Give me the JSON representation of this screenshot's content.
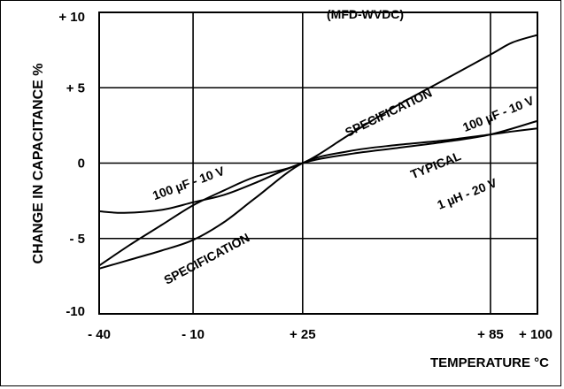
{
  "chart_data": {
    "type": "line",
    "title": "(MFD-WVDC)",
    "xlabel": "TEMPERATURE °C",
    "ylabel": "CHANGE IN CAPACITANCE %",
    "x_ticks": [
      -40,
      -10,
      25,
      85,
      100
    ],
    "x_tick_labels": [
      "- 40",
      "- 10",
      "+ 25",
      "+ 85",
      "+ 100"
    ],
    "y_ticks": [
      10,
      5,
      0,
      -5,
      -10
    ],
    "y_tick_labels": [
      "+ 10",
      "+ 5",
      "0",
      "- 5",
      "-10"
    ],
    "xlim": [
      -40,
      100
    ],
    "ylim": [
      -10,
      10
    ],
    "grid": true,
    "series": [
      {
        "name": "SPECIFICATION 100 µF - 10 V (upper)",
        "x": [
          -40,
          -30,
          -20,
          -10,
          0,
          10,
          25,
          40,
          55,
          70,
          85,
          92,
          100
        ],
        "y": [
          -6.8,
          -5.4,
          -4.1,
          -2.8,
          -1.8,
          -0.9,
          0,
          1.9,
          3.8,
          5.5,
          7.2,
          8.0,
          8.5
        ]
      },
      {
        "name": "SPECIFICATION (lower)",
        "x": [
          -40,
          -30,
          -20,
          -10,
          0,
          10,
          25,
          40,
          55,
          70,
          85,
          92,
          100
        ],
        "y": [
          -7.0,
          -6.4,
          -5.8,
          -5.1,
          -3.9,
          -2.3,
          0,
          0.8,
          1.2,
          1.5,
          1.9,
          2.1,
          2.3
        ]
      },
      {
        "name": "TYPICAL 1 µH - 20 V",
        "x": [
          -40,
          -32,
          -20,
          -10,
          0,
          10,
          25,
          40,
          55,
          70,
          85,
          100
        ],
        "y": [
          -3.2,
          -3.3,
          -3.1,
          -2.6,
          -2.1,
          -1.3,
          0,
          0.6,
          1.0,
          1.4,
          1.9,
          2.8
        ]
      }
    ],
    "annotations": [
      {
        "text": "(MFD-WVDC)",
        "x": 45,
        "y": 9.6,
        "rotate": 0
      },
      {
        "text": "SPECIFICATION",
        "x": 53,
        "y": 3.1,
        "rotate": -26
      },
      {
        "text": "100 µF - 10 V",
        "x": 88,
        "y": 3.0,
        "rotate": -22
      },
      {
        "text": "100 µF - 10 V",
        "x": -11,
        "y": -1.6,
        "rotate": -20
      },
      {
        "text": "TYPICAL",
        "x": 68,
        "y": -0.4,
        "rotate": -22
      },
      {
        "text": "1 µH - 20 V",
        "x": 78,
        "y": -2.3,
        "rotate": -22
      },
      {
        "text": "SPECIFICATION",
        "x": -5,
        "y": -6.6,
        "rotate": -28
      }
    ]
  }
}
